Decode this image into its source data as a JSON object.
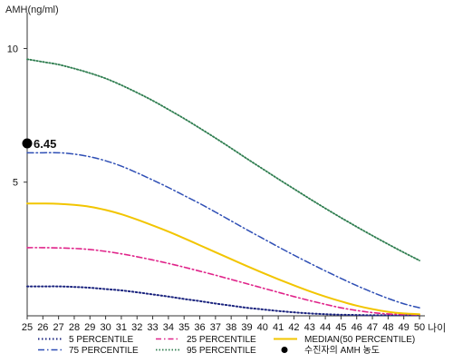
{
  "chart_data": {
    "type": "line",
    "ylabel": "AMH(ng/ml)",
    "xlabel": "나이",
    "xlim": [
      25,
      50
    ],
    "ylim": [
      0,
      11
    ],
    "xticks": [
      "25",
      "26",
      "27",
      "28",
      "29",
      "30",
      "31",
      "32",
      "33",
      "34",
      "35",
      "36",
      "37",
      "38",
      "39",
      "40",
      "41",
      "42",
      "43",
      "44",
      "45",
      "46",
      "47",
      "48",
      "49",
      "50"
    ],
    "yticks": [
      "5",
      "10"
    ],
    "ytick_values": [
      5,
      10
    ],
    "x": [
      25,
      26,
      27,
      28,
      29,
      30,
      31,
      32,
      33,
      34,
      35,
      36,
      37,
      38,
      39,
      40,
      41,
      42,
      43,
      44,
      45,
      46,
      47,
      48,
      49,
      50
    ],
    "series": [
      {
        "name": "5 PERCENTILE",
        "color": "#1a237e",
        "dash": "1.5,2.5",
        "width": 2,
        "values": [
          1.1,
          1.1,
          1.1,
          1.08,
          1.05,
          1.0,
          0.95,
          0.88,
          0.8,
          0.72,
          0.63,
          0.55,
          0.46,
          0.38,
          0.3,
          0.24,
          0.18,
          0.13,
          0.09,
          0.06,
          0.04,
          0.03,
          0.02,
          0.02,
          0.02,
          0.02
        ]
      },
      {
        "name": "25 PERCENTILE",
        "color": "#e0248a",
        "dash": "6,3,1.5,3",
        "width": 1.6,
        "values": [
          2.55,
          2.55,
          2.54,
          2.52,
          2.48,
          2.41,
          2.32,
          2.21,
          2.09,
          1.96,
          1.82,
          1.67,
          1.52,
          1.36,
          1.2,
          1.04,
          0.88,
          0.72,
          0.57,
          0.43,
          0.3,
          0.2,
          0.12,
          0.07,
          0.05,
          0.04
        ]
      },
      {
        "name": "MEDIAN(50 PERCENTILE)",
        "color": "#f2c500",
        "dash": "",
        "width": 2,
        "values": [
          4.2,
          4.2,
          4.19,
          4.15,
          4.08,
          3.96,
          3.8,
          3.6,
          3.38,
          3.15,
          2.9,
          2.64,
          2.38,
          2.12,
          1.86,
          1.61,
          1.37,
          1.14,
          0.92,
          0.72,
          0.54,
          0.38,
          0.25,
          0.15,
          0.09,
          0.06
        ]
      },
      {
        "name": "75 PERCENTILE",
        "color": "#2f4fb5",
        "dash": "7,3,1.5,3",
        "width": 1.5,
        "values": [
          6.1,
          6.1,
          6.1,
          6.05,
          5.95,
          5.8,
          5.6,
          5.35,
          5.08,
          4.8,
          4.5,
          4.2,
          3.88,
          3.55,
          3.22,
          2.9,
          2.58,
          2.27,
          1.97,
          1.68,
          1.4,
          1.13,
          0.88,
          0.65,
          0.45,
          0.3
        ]
      },
      {
        "name": "95 PERCENTILE",
        "color": "#2e7d4f",
        "dash": "1.5,2",
        "width": 1.8,
        "values": [
          9.6,
          9.5,
          9.4,
          9.25,
          9.08,
          8.88,
          8.63,
          8.35,
          8.05,
          7.72,
          7.38,
          7.02,
          6.65,
          6.27,
          5.88,
          5.5,
          5.12,
          4.75,
          4.38,
          4.02,
          3.67,
          3.33,
          3.0,
          2.68,
          2.37,
          2.07
        ]
      }
    ],
    "marker": {
      "name": "수진자의 AMH 농도",
      "x": 25,
      "y": 6.45,
      "label": "6.45",
      "color": "#000000"
    },
    "legend": {
      "position": "bottom",
      "columns": [
        [
          "5 PERCENTILE",
          "75 PERCENTILE"
        ],
        [
          "25 PERCENTILE",
          "95 PERCENTILE"
        ],
        [
          "MEDIAN(50 PERCENTILE)",
          "수진자의 AMH 농도"
        ]
      ]
    },
    "grid": false
  }
}
